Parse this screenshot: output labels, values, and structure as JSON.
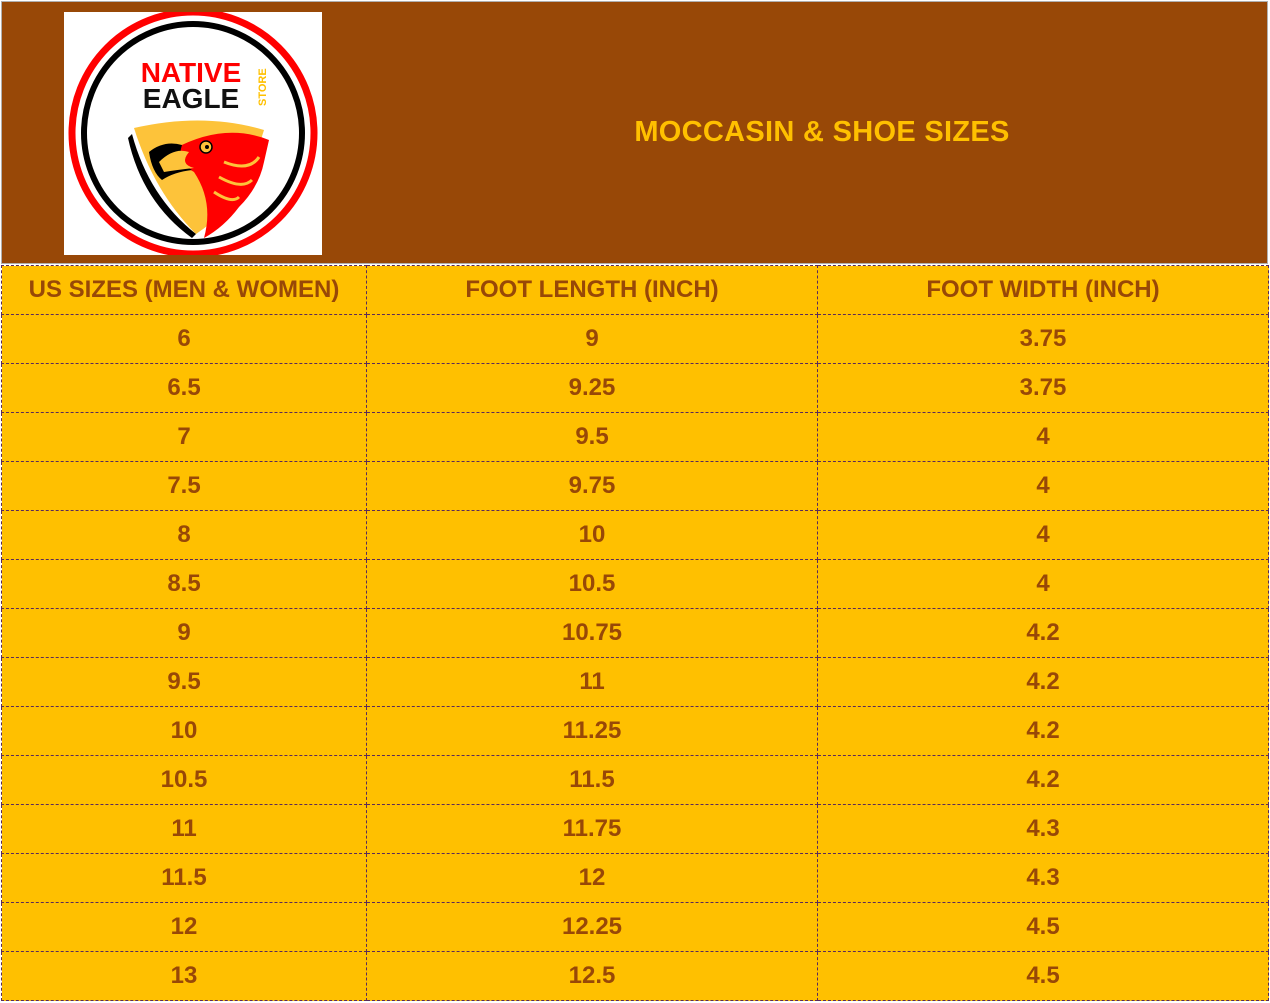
{
  "logo": {
    "line1": "NATIVE",
    "line2": "EAGLE",
    "side": "STORE"
  },
  "title": "MOCCASIN & SHOE SIZES",
  "colors": {
    "header_bg": "#984807",
    "title": "#FFC000",
    "table_bg": "#FFC000",
    "table_text": "#984807"
  },
  "table": {
    "headers": [
      "US SIZES (MEN & WOMEN)",
      "FOOT LENGTH (INCH)",
      "FOOT WIDTH (INCH)"
    ],
    "rows": [
      [
        "6",
        "9",
        "3.75"
      ],
      [
        "6.5",
        "9.25",
        "3.75"
      ],
      [
        "7",
        "9.5",
        "4"
      ],
      [
        "7.5",
        "9.75",
        "4"
      ],
      [
        "8",
        "10",
        "4"
      ],
      [
        "8.5",
        "10.5",
        "4"
      ],
      [
        "9",
        "10.75",
        "4.2"
      ],
      [
        "9.5",
        "11",
        "4.2"
      ],
      [
        "10",
        "11.25",
        "4.2"
      ],
      [
        "10.5",
        "11.5",
        "4.2"
      ],
      [
        "11",
        "11.75",
        "4.3"
      ],
      [
        "11.5",
        "12",
        "4.3"
      ],
      [
        "12",
        "12.25",
        "4.5"
      ],
      [
        "13",
        "12.5",
        "4.5"
      ]
    ]
  }
}
